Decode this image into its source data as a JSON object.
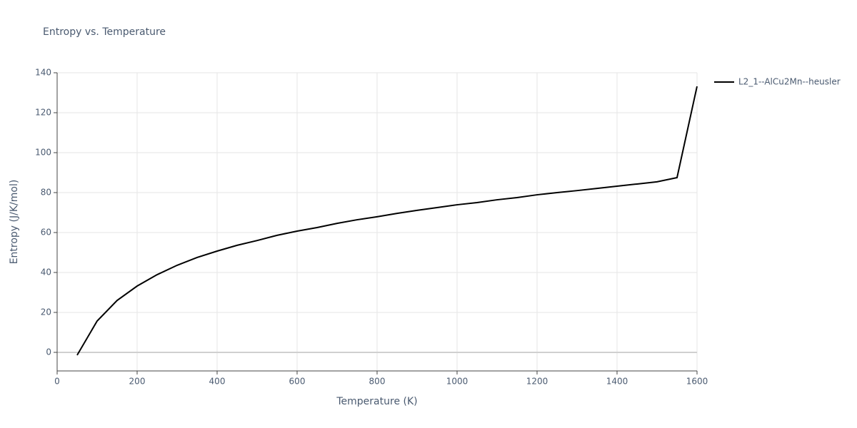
{
  "chart_data": {
    "type": "line",
    "title": "Entropy vs. Temperature",
    "x_label": "Temperature (K)",
    "y_label": "Entropy (J/K/mol)",
    "x": [
      50,
      100,
      150,
      200,
      250,
      300,
      350,
      400,
      450,
      500,
      550,
      600,
      650,
      700,
      750,
      800,
      850,
      900,
      950,
      1000,
      1050,
      1100,
      1150,
      1200,
      1250,
      1300,
      1350,
      1400,
      1450,
      1500,
      1550,
      1600
    ],
    "series": [
      {
        "name": "L2_1--AlCu2Mn--heusler",
        "color": "#000000",
        "values": [
          -1.4,
          15.7,
          26,
          33.2,
          38.9,
          43.6,
          47.5,
          50.7,
          53.6,
          56,
          58.6,
          60.7,
          62.5,
          64.6,
          66.4,
          67.9,
          69.6,
          71.1,
          72.5,
          73.9,
          75,
          76.4,
          77.5,
          78.9,
          80,
          81,
          82.1,
          83.2,
          84.3,
          85.4,
          87.5,
          133.2
        ]
      }
    ],
    "xlim": [
      0,
      1600
    ],
    "xticks": [
      0,
      200,
      400,
      600,
      800,
      1000,
      1200,
      1400,
      1600
    ],
    "ylim": [
      -9.3,
      140
    ],
    "yticks": [
      0,
      20,
      40,
      60,
      80,
      100,
      120,
      140
    ],
    "grid": true,
    "legend": "right"
  }
}
